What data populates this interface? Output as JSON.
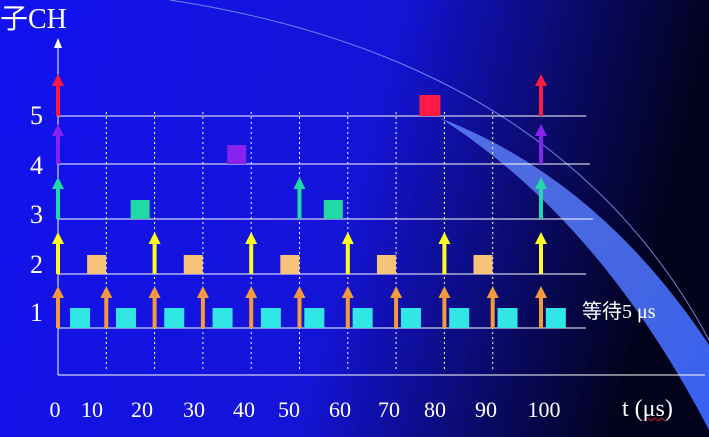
{
  "y_axis_label": "子CH",
  "x_axis_label_prefix": "t (",
  "x_axis_label_unit": "μs",
  "x_axis_label_suffix": ")",
  "y_ticks": [
    "1",
    "2",
    "3",
    "4",
    "5"
  ],
  "x_ticks": [
    "0",
    "10",
    "20",
    "30",
    "40",
    "50",
    "60",
    "70",
    "80",
    "90",
    "100"
  ],
  "annotation": "等待5 μs",
  "colors": {
    "ch1": "#33e6e6",
    "ch1_arrow": "#f59a3c",
    "ch2": "#f7c27a",
    "ch2_arrow": "#ffff22",
    "ch3": "#22d9a6",
    "ch4": "#8822ee",
    "ch5": "#ff1a44",
    "background_start": "#1a1aff",
    "background_end": "#000022",
    "beam": "#3d6bff"
  },
  "channels": [
    {
      "id": 1,
      "arrows": [
        0,
        10,
        20,
        30,
        40,
        50,
        60,
        70,
        80,
        90,
        100
      ],
      "squares": [
        2.5,
        12,
        22,
        32,
        42,
        51,
        61,
        71,
        81,
        91,
        101
      ]
    },
    {
      "id": 2,
      "arrows": [
        0,
        20,
        40,
        60,
        80,
        100
      ],
      "squares": [
        8,
        28,
        48,
        68,
        88
      ]
    },
    {
      "id": 3,
      "arrows": [
        0,
        50,
        100
      ],
      "squares": [
        17,
        57
      ]
    },
    {
      "id": 4,
      "arrows": [
        0,
        100
      ],
      "squares": [
        37
      ]
    },
    {
      "id": 5,
      "arrows": [
        0,
        100
      ],
      "squares": [
        77
      ]
    }
  ]
}
